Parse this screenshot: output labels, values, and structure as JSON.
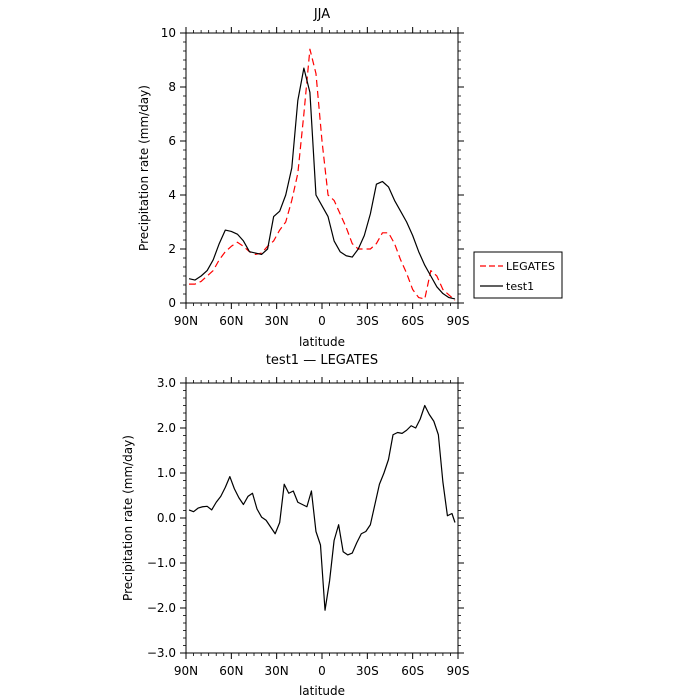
{
  "chart_data": [
    {
      "type": "line",
      "title": "JJA",
      "xlabel": "latitude",
      "ylabel": "Precipitation rate (mm/day)",
      "xlim": [
        90,
        -90
      ],
      "ylim": [
        0,
        10
      ],
      "x_ticks": [
        90,
        60,
        30,
        0,
        -30,
        -60,
        -90
      ],
      "x_tick_labels": [
        "90N",
        "60N",
        "30N",
        "0",
        "30S",
        "60S",
        "90S"
      ],
      "y_ticks": [
        0,
        2,
        4,
        6,
        8,
        10
      ],
      "y_tick_labels": [
        "0",
        "2",
        "4",
        "6",
        "8",
        "10"
      ],
      "legend_position": "right",
      "series": [
        {
          "name": "LEGATES",
          "color": "#ff0000",
          "dash": "dashed",
          "x": [
            88,
            84,
            80,
            76,
            72,
            68,
            64,
            60,
            56,
            52,
            48,
            44,
            40,
            36,
            32,
            28,
            24,
            20,
            16,
            12,
            8,
            4,
            0,
            -4,
            -8,
            -12,
            -16,
            -20,
            -24,
            -28,
            -32,
            -36,
            -40,
            -44,
            -48,
            -52,
            -56,
            -60,
            -64,
            -68,
            -72,
            -76,
            -80,
            -84,
            -88
          ],
          "y": [
            0.7,
            0.7,
            0.8,
            1.0,
            1.2,
            1.6,
            1.9,
            2.1,
            2.25,
            2.1,
            1.9,
            1.8,
            1.85,
            2.1,
            2.3,
            2.7,
            3.0,
            3.8,
            4.8,
            7.0,
            9.4,
            8.5,
            6.0,
            4.0,
            3.8,
            3.3,
            2.8,
            2.2,
            2.0,
            2.0,
            2.0,
            2.2,
            2.6,
            2.6,
            2.2,
            1.6,
            1.1,
            0.5,
            0.2,
            0.15,
            1.2,
            1.0,
            0.5,
            0.3,
            0.1
          ]
        },
        {
          "name": "test1",
          "color": "#000000",
          "dash": "solid",
          "x": [
            88,
            84,
            80,
            76,
            72,
            68,
            64,
            60,
            56,
            52,
            48,
            44,
            40,
            36,
            32,
            28,
            24,
            20,
            16,
            12,
            8,
            4,
            0,
            -4,
            -8,
            -12,
            -16,
            -20,
            -24,
            -28,
            -32,
            -36,
            -40,
            -44,
            -48,
            -52,
            -56,
            -60,
            -64,
            -68,
            -72,
            -76,
            -80,
            -84,
            -88
          ],
          "y": [
            0.9,
            0.85,
            1.0,
            1.2,
            1.6,
            2.2,
            2.7,
            2.65,
            2.55,
            2.3,
            1.9,
            1.85,
            1.8,
            2.0,
            3.2,
            3.4,
            4.0,
            5.0,
            7.5,
            8.7,
            7.8,
            4.0,
            3.6,
            3.2,
            2.3,
            1.9,
            1.75,
            1.7,
            2.0,
            2.5,
            3.3,
            4.4,
            4.5,
            4.3,
            3.8,
            3.4,
            3.0,
            2.5,
            1.9,
            1.4,
            1.0,
            0.6,
            0.35,
            0.2,
            0.15
          ]
        }
      ]
    },
    {
      "type": "line",
      "title": "test1 — LEGATES",
      "xlabel": "latitude",
      "ylabel": "Precipitation rate (mm/day)",
      "xlim": [
        90,
        -90
      ],
      "ylim": [
        -3,
        3
      ],
      "x_ticks": [
        90,
        60,
        30,
        0,
        -30,
        -60,
        -90
      ],
      "x_tick_labels": [
        "90N",
        "60N",
        "30N",
        "0",
        "30S",
        "60S",
        "90S"
      ],
      "y_ticks": [
        -3,
        -2,
        -1,
        0,
        1,
        2,
        3
      ],
      "y_tick_labels": [
        "−3.0",
        "−2.0",
        "−1.0",
        "0.0",
        "1.0",
        "2.0",
        "3.0"
      ],
      "series": [
        {
          "color": "#000000",
          "dash": "solid",
          "x": [
            88,
            85,
            82,
            79,
            76,
            73,
            70,
            67,
            64,
            61,
            58,
            55,
            52,
            49,
            46,
            43,
            40,
            37,
            34,
            31,
            28,
            25,
            22,
            19,
            16,
            13,
            10,
            7,
            4,
            1,
            -2,
            -5,
            -8,
            -11,
            -14,
            -17,
            -20,
            -23,
            -26,
            -29,
            -32,
            -35,
            -38,
            -41,
            -44,
            -47,
            -50,
            -53,
            -56,
            -59,
            -62,
            -65,
            -68,
            -71,
            -74,
            -77,
            -80,
            -83,
            -86,
            -88
          ],
          "y": [
            0.18,
            0.14,
            0.22,
            0.25,
            0.26,
            0.18,
            0.35,
            0.48,
            0.68,
            0.92,
            0.65,
            0.45,
            0.3,
            0.48,
            0.55,
            0.2,
            0.02,
            -0.05,
            -0.2,
            -0.35,
            -0.1,
            0.75,
            0.55,
            0.6,
            0.35,
            0.3,
            0.25,
            0.6,
            -0.3,
            -0.6,
            -2.05,
            -1.4,
            -0.5,
            -0.15,
            -0.75,
            -0.82,
            -0.78,
            -0.55,
            -0.35,
            -0.3,
            -0.15,
            0.3,
            0.75,
            1.0,
            1.3,
            1.85,
            1.9,
            1.88,
            1.95,
            2.05,
            2.0,
            2.2,
            2.5,
            2.3,
            2.15,
            1.85,
            0.8,
            0.05,
            0.1,
            -0.1
          ]
        }
      ]
    }
  ]
}
